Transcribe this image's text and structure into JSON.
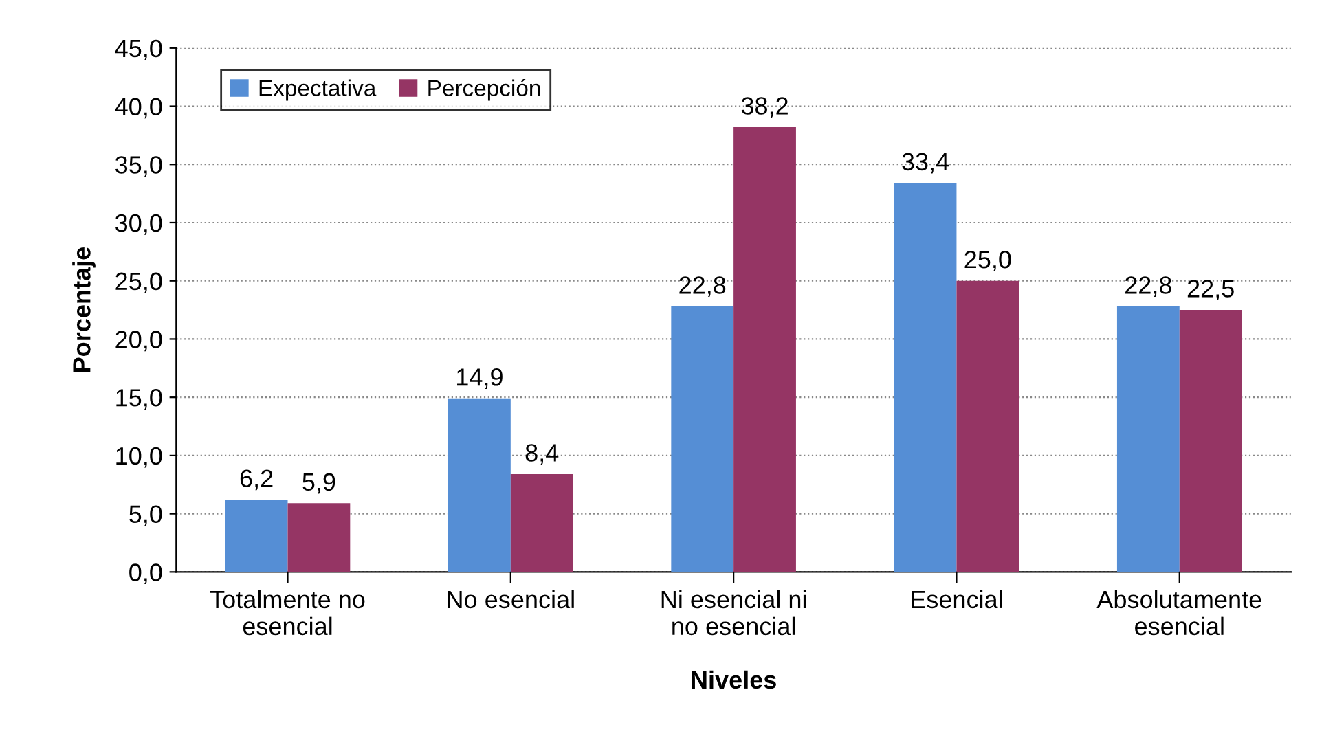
{
  "chart_data": {
    "type": "bar",
    "xlabel": "Niveles",
    "ylabel": "Porcentaje",
    "categories": [
      "Totalmente no\nesencial",
      "No esencial",
      "Ni esencial ni\nno esencial",
      "Esencial",
      "Absolutamente\nesencial"
    ],
    "series": [
      {
        "name": "Expectativa",
        "color": "#558ed5",
        "values": [
          6.2,
          14.9,
          22.8,
          33.4,
          22.8
        ],
        "value_labels": [
          "6,2",
          "14,9",
          "22,8",
          "33,4",
          "22,8"
        ]
      },
      {
        "name": "Percepción",
        "color": "#953564",
        "values": [
          5.9,
          8.4,
          38.2,
          25.0,
          22.5
        ],
        "value_labels": [
          "5,9",
          "8,4",
          "38,2",
          "25,0",
          "22,5"
        ]
      }
    ],
    "ylim": [
      0,
      45
    ],
    "yticks": [
      {
        "value": 0,
        "label": "0,0"
      },
      {
        "value": 5,
        "label": "5,0"
      },
      {
        "value": 10,
        "label": "10,0"
      },
      {
        "value": 15,
        "label": "15,0"
      },
      {
        "value": 20,
        "label": "20,0"
      },
      {
        "value": 25,
        "label": "25,0"
      },
      {
        "value": 30,
        "label": "30,0"
      },
      {
        "value": 35,
        "label": "35,0"
      },
      {
        "value": 40,
        "label": "40,0"
      },
      {
        "value": 45,
        "label": "45,0"
      }
    ],
    "grid": "y",
    "legend": "top left"
  }
}
